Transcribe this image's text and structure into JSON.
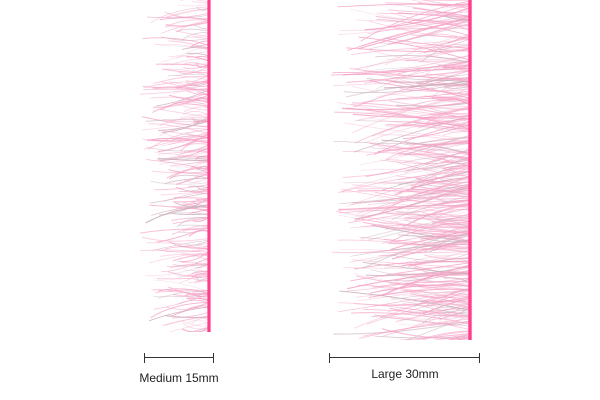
{
  "samples": [
    {
      "id": "medium",
      "label": "Medium 15mm",
      "fiber_color": "#f5a3c6",
      "core_color": "#ff3d8b"
    },
    {
      "id": "large",
      "label": "Large 30mm",
      "fiber_color": "#f5a3c6",
      "core_color": "#ff3d8b"
    }
  ]
}
